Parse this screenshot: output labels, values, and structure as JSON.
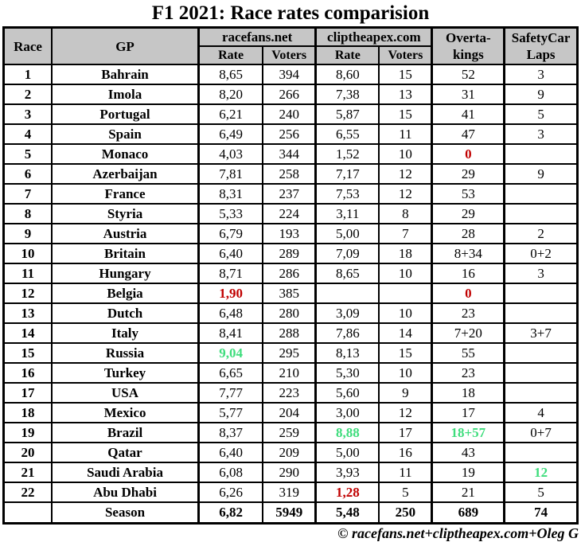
{
  "title": "F1 2021: Race rates comparision",
  "footer_credit": "© racefans.net+cliptheapex.com+Oleg G",
  "colors": {
    "header_background": "#c6c6c6",
    "highlight_red": "#c00000",
    "highlight_green": "#3edd7c",
    "border": "#000000"
  },
  "chart_data": {
    "type": "table",
    "title": "F1 2021: Race rates comparision",
    "headers": {
      "race": "Race",
      "gp": "GP",
      "group_racefans": "racefans.net",
      "group_cliptheapex": "cliptheapex.com",
      "rate": "Rate",
      "voters": "Voters",
      "overtakings": "Overta-\nkings",
      "safetycar_laps": "SafetyCar\nLaps"
    },
    "rows": [
      {
        "race": "1",
        "gp": "Bahrain",
        "values": [
          "8,65",
          "394",
          "8,60",
          "15",
          "52",
          "3"
        ]
      },
      {
        "race": "2",
        "gp": "Imola",
        "values": [
          "8,20",
          "266",
          "7,38",
          "13",
          "31",
          "9"
        ]
      },
      {
        "race": "3",
        "gp": "Portugal",
        "values": [
          "6,21",
          "240",
          "5,87",
          "15",
          "41",
          "5"
        ]
      },
      {
        "race": "4",
        "gp": "Spain",
        "values": [
          "6,49",
          "256",
          "6,55",
          "11",
          "47",
          "3"
        ]
      },
      {
        "race": "5",
        "gp": "Monaco",
        "values": [
          "4,03",
          "344",
          "1,52",
          "10",
          {
            "t": "0",
            "c": "red"
          },
          ""
        ]
      },
      {
        "race": "6",
        "gp": "Azerbaijan",
        "values": [
          "7,81",
          "258",
          "7,17",
          "12",
          "29",
          "9"
        ]
      },
      {
        "race": "7",
        "gp": "France",
        "values": [
          "8,31",
          "237",
          "7,53",
          "12",
          "53",
          ""
        ]
      },
      {
        "race": "8",
        "gp": "Styria",
        "values": [
          "5,33",
          "224",
          "3,11",
          "8",
          "29",
          ""
        ]
      },
      {
        "race": "9",
        "gp": "Austria",
        "values": [
          "6,79",
          "193",
          "5,00",
          "7",
          "28",
          "2"
        ]
      },
      {
        "race": "10",
        "gp": "Britain",
        "values": [
          "6,40",
          "289",
          "7,09",
          "18",
          "8+34",
          "0+2"
        ]
      },
      {
        "race": "11",
        "gp": "Hungary",
        "values": [
          "8,71",
          "286",
          "8,65",
          "10",
          "16",
          "3"
        ]
      },
      {
        "race": "12",
        "gp": "Belgia",
        "values": [
          {
            "t": "1,90",
            "c": "red"
          },
          "385",
          "",
          "",
          {
            "t": "0",
            "c": "red"
          },
          ""
        ]
      },
      {
        "race": "13",
        "gp": "Dutch",
        "values": [
          "6,48",
          "280",
          "3,09",
          "10",
          "23",
          ""
        ]
      },
      {
        "race": "14",
        "gp": "Italy",
        "values": [
          "8,41",
          "288",
          "7,86",
          "14",
          "7+20",
          "3+7"
        ]
      },
      {
        "race": "15",
        "gp": "Russia",
        "values": [
          {
            "t": "9,04",
            "c": "green"
          },
          "295",
          "8,13",
          "15",
          "55",
          ""
        ]
      },
      {
        "race": "16",
        "gp": "Turkey",
        "values": [
          "6,65",
          "210",
          "5,30",
          "10",
          "23",
          ""
        ]
      },
      {
        "race": "17",
        "gp": "USA",
        "values": [
          "7,77",
          "223",
          "5,60",
          "9",
          "18",
          ""
        ]
      },
      {
        "race": "18",
        "gp": "Mexico",
        "values": [
          "5,77",
          "204",
          "3,00",
          "12",
          "17",
          "4"
        ]
      },
      {
        "race": "19",
        "gp": "Brazil",
        "values": [
          "8,37",
          "259",
          {
            "t": "8,88",
            "c": "green"
          },
          "17",
          {
            "t": "18+57",
            "c": "green"
          },
          "0+7"
        ]
      },
      {
        "race": "20",
        "gp": "Qatar",
        "values": [
          "6,40",
          "209",
          "5,00",
          "16",
          "43",
          ""
        ]
      },
      {
        "race": "21",
        "gp": "Saudi Arabia",
        "values": [
          "6,08",
          "290",
          "3,93",
          "11",
          "19",
          {
            "t": "12",
            "c": "green"
          }
        ]
      },
      {
        "race": "22",
        "gp": "Abu Dhabi",
        "values": [
          "6,26",
          "319",
          {
            "t": "1,28",
            "c": "red"
          },
          "5",
          "21",
          "5"
        ]
      }
    ],
    "season": {
      "label": "Season",
      "values": [
        "6,82",
        "5949",
        "5,48",
        "250",
        "689",
        "74"
      ]
    }
  }
}
